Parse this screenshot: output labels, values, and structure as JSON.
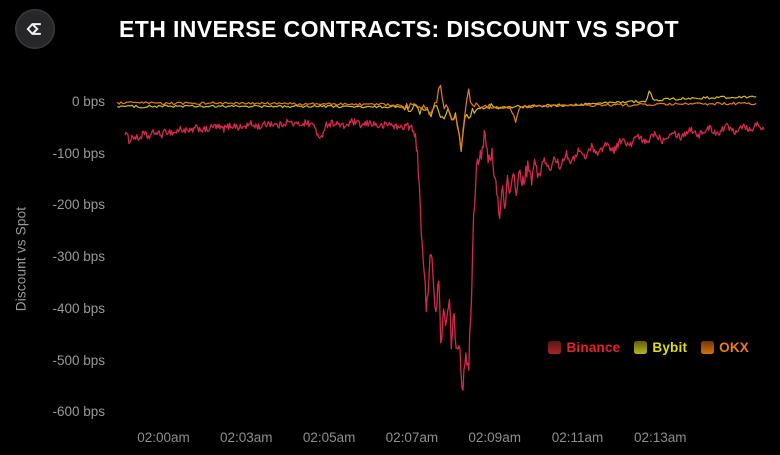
{
  "header": {
    "logo_name": "velo-sigma-logo"
  },
  "chart_data": {
    "type": "line",
    "title": "ETH INVERSE CONTRACTS: DISCOUNT VS SPOT",
    "ylabel": "Discount vs Spot",
    "xlabel": "",
    "background": "#000000",
    "grid": false,
    "legend_position": "inside-right",
    "ylim_bps": [
      45,
      -620
    ],
    "ytick_labels": [
      "0 bps",
      "-100 bps",
      "-200 bps",
      "-300 bps",
      "-400 bps",
      "-500 bps",
      "-600 bps"
    ],
    "yticks_bps": [
      0,
      -100,
      -200,
      -300,
      -400,
      -500,
      -600
    ],
    "xtick_labels": [
      "02:00am",
      "02:03am",
      "02:05am",
      "02:07am",
      "02:09am",
      "02:11am",
      "02:13am"
    ],
    "x_unit": "fraction of plot width; tick 02:00am at 0.078, ticks evenly spaced every 0.1268",
    "y_unit": "basis points discount vs spot",
    "series": [
      {
        "name": "Binance",
        "color": "#d2294b",
        "legend_text_color": "#e4232f",
        "swatch_from": "#571716",
        "swatch_to": "#a92525",
        "stroke_width": 1.3,
        "samples": 660,
        "noise": 7,
        "noise_zones": [
          [
            0.46,
            0.57,
            15
          ],
          [
            0.57,
            0.66,
            9
          ]
        ],
        "points": [
          [
            0.02,
            -58
          ],
          [
            0.026,
            -74
          ],
          [
            0.032,
            -66
          ],
          [
            0.04,
            -72
          ],
          [
            0.048,
            -62
          ],
          [
            0.056,
            -68
          ],
          [
            0.065,
            -58
          ],
          [
            0.075,
            -64
          ],
          [
            0.085,
            -56
          ],
          [
            0.095,
            -60
          ],
          [
            0.105,
            -52
          ],
          [
            0.118,
            -58
          ],
          [
            0.13,
            -50
          ],
          [
            0.143,
            -55
          ],
          [
            0.156,
            -47
          ],
          [
            0.17,
            -52
          ],
          [
            0.184,
            -45
          ],
          [
            0.198,
            -50
          ],
          [
            0.212,
            -43
          ],
          [
            0.226,
            -48
          ],
          [
            0.24,
            -40
          ],
          [
            0.254,
            -46
          ],
          [
            0.268,
            -38
          ],
          [
            0.282,
            -44
          ],
          [
            0.296,
            -40
          ],
          [
            0.31,
            -46
          ],
          [
            0.318,
            -78
          ],
          [
            0.326,
            -44
          ],
          [
            0.34,
            -40
          ],
          [
            0.354,
            -48
          ],
          [
            0.368,
            -38
          ],
          [
            0.382,
            -46
          ],
          [
            0.396,
            -40
          ],
          [
            0.41,
            -48
          ],
          [
            0.424,
            -42
          ],
          [
            0.438,
            -50
          ],
          [
            0.45,
            -45
          ],
          [
            0.46,
            -52
          ],
          [
            0.468,
            -110
          ],
          [
            0.473,
            -240
          ],
          [
            0.477,
            -330
          ],
          [
            0.481,
            -415
          ],
          [
            0.485,
            -310
          ],
          [
            0.488,
            -275
          ],
          [
            0.492,
            -365
          ],
          [
            0.495,
            -415
          ],
          [
            0.499,
            -345
          ],
          [
            0.503,
            -460
          ],
          [
            0.507,
            -400
          ],
          [
            0.511,
            -445
          ],
          [
            0.515,
            -385
          ],
          [
            0.519,
            -462
          ],
          [
            0.523,
            -420
          ],
          [
            0.527,
            -480
          ],
          [
            0.53,
            -448
          ],
          [
            0.533,
            -498
          ],
          [
            0.536,
            -555
          ],
          [
            0.539,
            -485
          ],
          [
            0.542,
            -512
          ],
          [
            0.545,
            -532
          ],
          [
            0.548,
            -425
          ],
          [
            0.551,
            -310
          ],
          [
            0.554,
            -195
          ],
          [
            0.557,
            -125
          ],
          [
            0.56,
            -98
          ],
          [
            0.563,
            -108
          ],
          [
            0.566,
            -82
          ],
          [
            0.569,
            -64
          ],
          [
            0.573,
            -96
          ],
          [
            0.577,
            -120
          ],
          [
            0.581,
            -102
          ],
          [
            0.585,
            -148
          ],
          [
            0.589,
            -178
          ],
          [
            0.593,
            -222
          ],
          [
            0.597,
            -162
          ],
          [
            0.601,
            -196
          ],
          [
            0.605,
            -152
          ],
          [
            0.609,
            -186
          ],
          [
            0.614,
            -142
          ],
          [
            0.619,
            -172
          ],
          [
            0.624,
            -132
          ],
          [
            0.629,
            -162
          ],
          [
            0.635,
            -126
          ],
          [
            0.641,
            -152
          ],
          [
            0.647,
            -120
          ],
          [
            0.654,
            -142
          ],
          [
            0.661,
            -112
          ],
          [
            0.669,
            -134
          ],
          [
            0.677,
            -106
          ],
          [
            0.685,
            -126
          ],
          [
            0.694,
            -98
          ],
          [
            0.703,
            -118
          ],
          [
            0.713,
            -92
          ],
          [
            0.723,
            -108
          ],
          [
            0.733,
            -86
          ],
          [
            0.744,
            -100
          ],
          [
            0.755,
            -80
          ],
          [
            0.767,
            -94
          ],
          [
            0.779,
            -72
          ],
          [
            0.791,
            -86
          ],
          [
            0.803,
            -66
          ],
          [
            0.816,
            -80
          ],
          [
            0.829,
            -60
          ],
          [
            0.842,
            -74
          ],
          [
            0.856,
            -56
          ],
          [
            0.87,
            -68
          ],
          [
            0.884,
            -52
          ],
          [
            0.898,
            -64
          ],
          [
            0.912,
            -50
          ],
          [
            0.926,
            -60
          ],
          [
            0.94,
            -46
          ],
          [
            0.953,
            -56
          ],
          [
            0.965,
            -44
          ],
          [
            0.976,
            -54
          ],
          [
            0.986,
            -42
          ],
          [
            0.997,
            -50
          ]
        ]
      },
      {
        "name": "Bybit",
        "color": "#d3ba1f",
        "legend_text_color": "#e4dc0e",
        "swatch_from": "#5f5c11",
        "swatch_to": "#b6b81f",
        "stroke_width": 1.2,
        "samples": 340,
        "noise": 2.5,
        "noise_zones": [
          [
            0.44,
            0.58,
            5
          ]
        ],
        "points": [
          [
            0.008,
            -8
          ],
          [
            0.05,
            -9
          ],
          [
            0.1,
            -8
          ],
          [
            0.15,
            -9
          ],
          [
            0.2,
            -8
          ],
          [
            0.25,
            -9
          ],
          [
            0.3,
            -8
          ],
          [
            0.35,
            -9
          ],
          [
            0.4,
            -10
          ],
          [
            0.43,
            -9
          ],
          [
            0.45,
            -14
          ],
          [
            0.462,
            -10
          ],
          [
            0.47,
            -20
          ],
          [
            0.478,
            -12
          ],
          [
            0.486,
            -26
          ],
          [
            0.492,
            -14
          ],
          [
            0.498,
            -10
          ],
          [
            0.502,
            -22
          ],
          [
            0.508,
            -32
          ],
          [
            0.514,
            -18
          ],
          [
            0.52,
            -42
          ],
          [
            0.526,
            -26
          ],
          [
            0.531,
            -62
          ],
          [
            0.534,
            -97
          ],
          [
            0.537,
            -52
          ],
          [
            0.541,
            -26
          ],
          [
            0.545,
            -36
          ],
          [
            0.55,
            -18
          ],
          [
            0.555,
            -26
          ],
          [
            0.56,
            -12
          ],
          [
            0.57,
            -16
          ],
          [
            0.58,
            -10
          ],
          [
            0.6,
            -12
          ],
          [
            0.62,
            -9
          ],
          [
            0.65,
            -8
          ],
          [
            0.68,
            -6
          ],
          [
            0.71,
            -5
          ],
          [
            0.74,
            -3
          ],
          [
            0.77,
            -1
          ],
          [
            0.8,
            1
          ],
          [
            0.818,
            3
          ],
          [
            0.822,
            26
          ],
          [
            0.826,
            4
          ],
          [
            0.85,
            5
          ],
          [
            0.88,
            7
          ],
          [
            0.91,
            8
          ],
          [
            0.94,
            9
          ],
          [
            0.97,
            10
          ],
          [
            0.985,
            11
          ]
        ]
      },
      {
        "name": "OKX",
        "color": "#e2801b",
        "legend_text_color": "#ef7d16",
        "swatch_from": "#6e3608",
        "swatch_to": "#d4720f",
        "stroke_width": 1.2,
        "samples": 340,
        "noise": 2.5,
        "noise_zones": [
          [
            0.44,
            0.58,
            5
          ]
        ],
        "points": [
          [
            0.008,
            -2
          ],
          [
            0.05,
            -2
          ],
          [
            0.1,
            -3
          ],
          [
            0.15,
            -2
          ],
          [
            0.2,
            -3
          ],
          [
            0.25,
            -3
          ],
          [
            0.3,
            -4
          ],
          [
            0.35,
            -4
          ],
          [
            0.4,
            -5
          ],
          [
            0.43,
            -5
          ],
          [
            0.45,
            -10
          ],
          [
            0.46,
            -6
          ],
          [
            0.47,
            -16
          ],
          [
            0.478,
            -8
          ],
          [
            0.486,
            -20
          ],
          [
            0.493,
            -6
          ],
          [
            0.498,
            12
          ],
          [
            0.502,
            38
          ],
          [
            0.5055,
            10
          ],
          [
            0.509,
            -14
          ],
          [
            0.513,
            -6
          ],
          [
            0.517,
            -24
          ],
          [
            0.521,
            -36
          ],
          [
            0.525,
            -20
          ],
          [
            0.529,
            -46
          ],
          [
            0.532,
            -68
          ],
          [
            0.534,
            -90
          ],
          [
            0.537,
            -48
          ],
          [
            0.54,
            -18
          ],
          [
            0.543,
            6
          ],
          [
            0.546,
            22
          ],
          [
            0.549,
            -2
          ],
          [
            0.553,
            -18
          ],
          [
            0.557,
            -8
          ],
          [
            0.561,
            -16
          ],
          [
            0.566,
            -6
          ],
          [
            0.571,
            -12
          ],
          [
            0.58,
            -9
          ],
          [
            0.59,
            -13
          ],
          [
            0.6,
            -9
          ],
          [
            0.61,
            -13
          ],
          [
            0.617,
            -38
          ],
          [
            0.623,
            -10
          ],
          [
            0.64,
            -9
          ],
          [
            0.66,
            -8
          ],
          [
            0.69,
            -7
          ],
          [
            0.72,
            -7
          ],
          [
            0.75,
            -6
          ],
          [
            0.78,
            -6
          ],
          [
            0.81,
            -5
          ],
          [
            0.84,
            -5
          ],
          [
            0.87,
            -4
          ],
          [
            0.9,
            -4
          ],
          [
            0.93,
            -3
          ],
          [
            0.96,
            -3
          ],
          [
            0.985,
            -3
          ]
        ]
      }
    ]
  }
}
